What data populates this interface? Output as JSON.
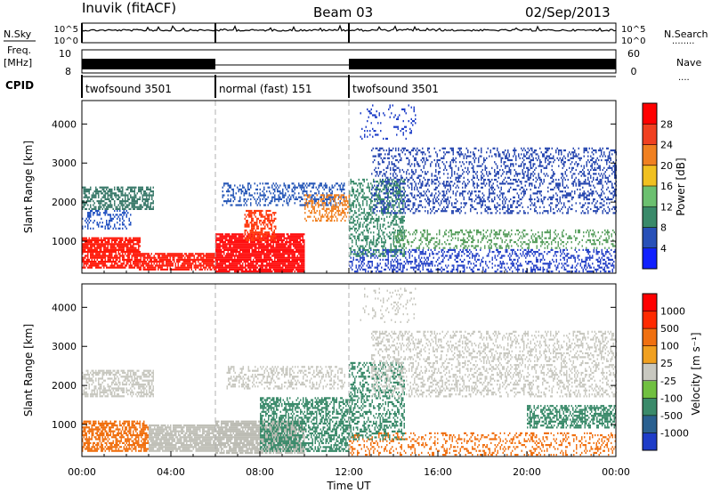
{
  "header": {
    "station": "Inuvik (fitACF)",
    "beam": "Beam 03",
    "date": "02/Sep/2013"
  },
  "panels": {
    "nsky_label": "N.Sky",
    "nsearch_label": "N.Search",
    "nsearch_dots": "........",
    "freq_label": "Freq.",
    "freq_unit": "[MHz]",
    "nave_label": "Nave",
    "nave_dots": "....",
    "cpid_label": "CPID",
    "noise_ticks_left": [
      "10^5",
      "10^0"
    ],
    "noise_ticks_right": [
      "10^5",
      "10^0"
    ],
    "freq_ticks_left": [
      "10",
      "8"
    ],
    "nave_ticks_right": [
      "60",
      "0"
    ],
    "cpid_segments": [
      {
        "name": "twofsound 3501",
        "start": 0,
        "end": 6
      },
      {
        "name": "normal (fast) 151",
        "start": 6,
        "end": 12
      },
      {
        "name": "twofsound 3501",
        "start": 12,
        "end": 24
      }
    ]
  },
  "chart_data": [
    {
      "type": "heatmap",
      "title": "",
      "quantity": "power",
      "ylabel": "Slant Range [km]",
      "xlabel": "",
      "xlim": [
        0,
        24
      ],
      "ylim": [
        180,
        4600
      ],
      "yticks": [
        1000,
        2000,
        3000,
        4000
      ],
      "colorbar": {
        "label": "Power [dB]",
        "ticks": [
          "4",
          "8",
          "12",
          "16",
          "20",
          "24",
          "28"
        ],
        "colors": [
          "#1020ff",
          "#2850b8",
          "#3a8a6a",
          "#6cc070",
          "#f0c020",
          "#f08020",
          "#f04020",
          "#ff0000"
        ]
      },
      "scatter_regions": [
        {
          "t0": 0.0,
          "t1": 2.6,
          "r0": 300,
          "r1": 1100,
          "color": "#ff1a0a",
          "density": 0.8
        },
        {
          "t0": 0.0,
          "t1": 3.2,
          "r0": 1800,
          "r1": 2400,
          "color": "#3b7a6b",
          "density": 0.6
        },
        {
          "t0": 0.0,
          "t1": 2.2,
          "r0": 1300,
          "r1": 1800,
          "color": "#2050c0",
          "density": 0.35
        },
        {
          "t0": 2.5,
          "t1": 6.0,
          "r0": 250,
          "r1": 700,
          "color": "#ff2010",
          "density": 0.85
        },
        {
          "t0": 6.0,
          "t1": 10.0,
          "r0": 200,
          "r1": 1200,
          "color": "#ff1010",
          "density": 0.9
        },
        {
          "t0": 7.3,
          "t1": 8.7,
          "r0": 1000,
          "r1": 1800,
          "color": "#ff3a10",
          "density": 0.55
        },
        {
          "t0": 6.3,
          "t1": 11.8,
          "r0": 1900,
          "r1": 2500,
          "color": "#2a5ab8",
          "density": 0.35
        },
        {
          "t0": 10.0,
          "t1": 12.0,
          "r0": 1500,
          "r1": 2200,
          "color": "#f08020",
          "density": 0.4
        },
        {
          "t0": 12.0,
          "t1": 24.0,
          "r0": 200,
          "r1": 800,
          "color": "#2a46c8",
          "density": 0.35
        },
        {
          "t0": 12.0,
          "t1": 14.5,
          "r0": 600,
          "r1": 2600,
          "color": "#3a8a6a",
          "density": 0.4
        },
        {
          "t0": 13.0,
          "t1": 24.0,
          "r0": 1700,
          "r1": 3400,
          "color": "#2848b0",
          "density": 0.3
        },
        {
          "t0": 14.0,
          "t1": 24.0,
          "r0": 800,
          "r1": 1300,
          "color": "#5aa060",
          "density": 0.3
        },
        {
          "t0": 12.5,
          "t1": 15.0,
          "r0": 3600,
          "r1": 4500,
          "color": "#2040c8",
          "density": 0.12
        }
      ]
    },
    {
      "type": "heatmap",
      "title": "",
      "quantity": "velocity",
      "ylabel": "Slant Range [km]",
      "xlabel": "Time UT",
      "xlim": [
        0,
        24
      ],
      "ylim": [
        180,
        4600
      ],
      "yticks": [
        1000,
        2000,
        3000,
        4000
      ],
      "xticks": [
        "00:00",
        "04:00",
        "08:00",
        "12:00",
        "16:00",
        "20:00",
        "00:00"
      ],
      "colorbar": {
        "label": "Velocity [m s^-1]",
        "ticks": [
          "1000",
          "500",
          "100",
          "25",
          "-25",
          "-100",
          "-500",
          "-1000"
        ],
        "colors": [
          "#1e3cc8",
          "#2a6090",
          "#3a8a6a",
          "#70c040",
          "#c8c8c0",
          "#f0a020",
          "#f07010",
          "#ff2a00",
          "#ff0000"
        ]
      },
      "scatter_regions": [
        {
          "t0": 0.0,
          "t1": 3.0,
          "r0": 300,
          "r1": 1100,
          "color": "#f07010",
          "density": 0.65
        },
        {
          "t0": 0.0,
          "t1": 3.2,
          "r0": 1700,
          "r1": 2400,
          "color": "#c8c8c0",
          "density": 0.55
        },
        {
          "t0": 3.0,
          "t1": 6.0,
          "r0": 300,
          "r1": 1000,
          "color": "#c0c0b8",
          "density": 0.85
        },
        {
          "t0": 6.0,
          "t1": 10.0,
          "r0": 250,
          "r1": 1100,
          "color": "#bcbcb4",
          "density": 0.85
        },
        {
          "t0": 8.0,
          "t1": 12.0,
          "r0": 300,
          "r1": 1700,
          "color": "#3a8a6a",
          "density": 0.55
        },
        {
          "t0": 6.5,
          "t1": 11.8,
          "r0": 1900,
          "r1": 2500,
          "color": "#c8c8c0",
          "density": 0.35
        },
        {
          "t0": 12.0,
          "t1": 24.0,
          "r0": 200,
          "r1": 800,
          "color": "#f07010",
          "density": 0.25
        },
        {
          "t0": 12.0,
          "t1": 14.5,
          "r0": 600,
          "r1": 2600,
          "color": "#3a8a6a",
          "density": 0.4
        },
        {
          "t0": 13.0,
          "t1": 24.0,
          "r0": 1700,
          "r1": 3400,
          "color": "#c8c8c0",
          "density": 0.32
        },
        {
          "t0": 20.0,
          "t1": 24.0,
          "r0": 900,
          "r1": 1500,
          "color": "#3a8a6a",
          "density": 0.55
        },
        {
          "t0": 12.5,
          "t1": 15.0,
          "r0": 3600,
          "r1": 4500,
          "color": "#c8c8c0",
          "density": 0.12
        }
      ]
    }
  ]
}
